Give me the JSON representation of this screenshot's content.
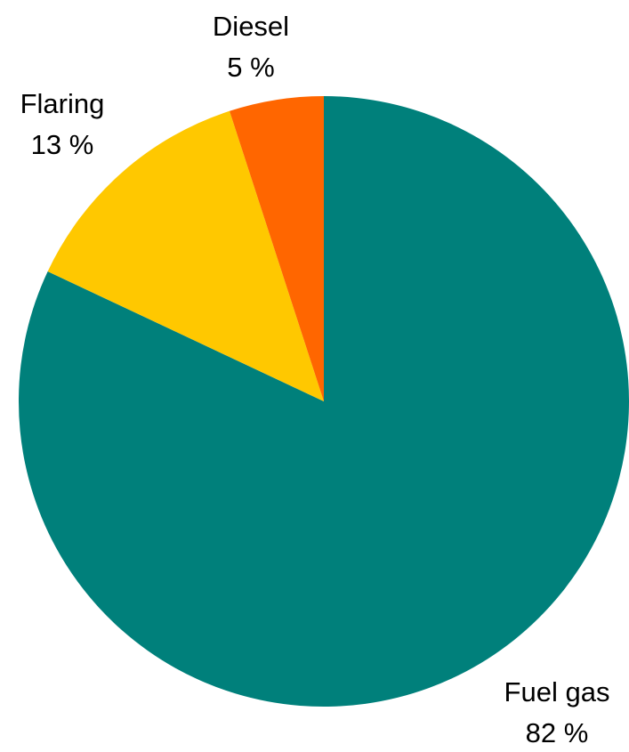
{
  "chart_data": {
    "type": "pie",
    "title": "",
    "start_angle_deg": 0,
    "direction": "clockwise",
    "slices": [
      {
        "label": "Fuel gas",
        "value": 82,
        "value_label": "82 %",
        "color": "#00807B"
      },
      {
        "label": "Flaring",
        "value": 13,
        "value_label": "13 %",
        "color": "#FFC800"
      },
      {
        "label": "Diesel",
        "value": 5,
        "value_label": "5 %",
        "color": "#FF6600"
      }
    ],
    "legend": "none",
    "labels": "outside"
  }
}
